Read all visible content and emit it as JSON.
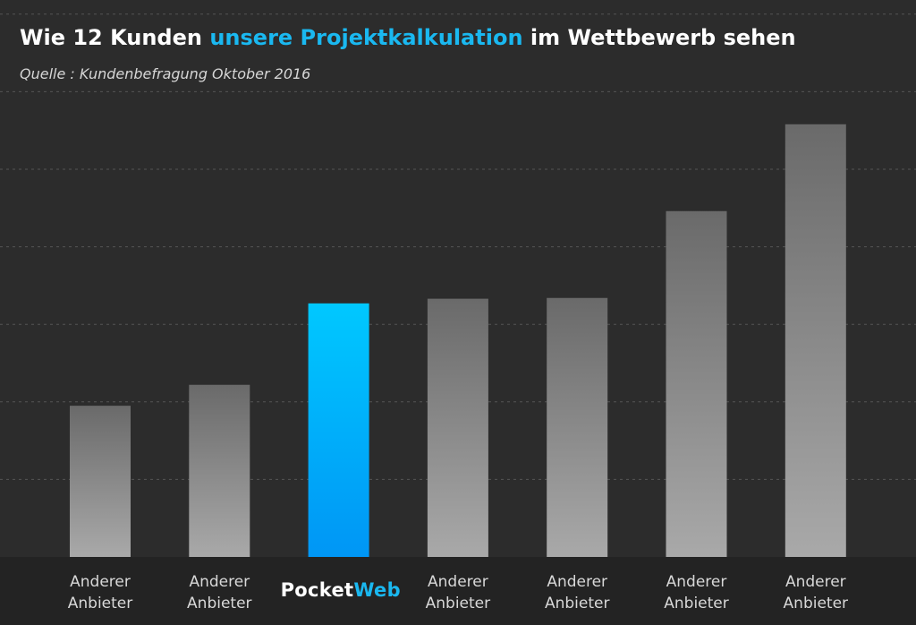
{
  "title": {
    "part1": "Wie 12 Kunden ",
    "highlight": "unsere Projektkalkulation",
    "part2": " im Wettbewerb sehen"
  },
  "subtitle": "Quelle : Kundenbefragung Oktober 2016",
  "colors": {
    "background": "#2c2c2c",
    "highlight": "#1ab8f0",
    "bar_top": "#6a6a6a",
    "bar_bottom": "#a9a9a9",
    "brand_bar_top": "#00c8ff",
    "brand_bar_bottom": "#0096f5"
  },
  "chart_data": {
    "type": "bar",
    "title": "Wie 12 Kunden unsere Projektkalkulation im Wettbewerb sehen",
    "subtitle": "Quelle : Kundenbefragung Oktober 2016",
    "grid": true,
    "y_axis_labels_visible": false,
    "ylim": [
      0,
      7
    ],
    "categories": [
      {
        "line1": "Anderer",
        "line2": "Anbieter",
        "brand": false
      },
      {
        "line1": "Anderer",
        "line2": "Anbieter",
        "brand": false
      },
      {
        "logo_text": "Pocket",
        "logo_accent": "Web",
        "brand": true
      },
      {
        "line1": "Anderer",
        "line2": "Anbieter",
        "brand": false
      },
      {
        "line1": "Anderer",
        "line2": "Anbieter",
        "brand": false
      },
      {
        "line1": "Anderer",
        "line2": "Anbieter",
        "brand": false
      },
      {
        "line1": "Anderer",
        "line2": "Anbieter",
        "brand": false
      }
    ],
    "values": [
      1.95,
      2.22,
      3.27,
      3.33,
      3.34,
      4.46,
      5.58
    ]
  }
}
